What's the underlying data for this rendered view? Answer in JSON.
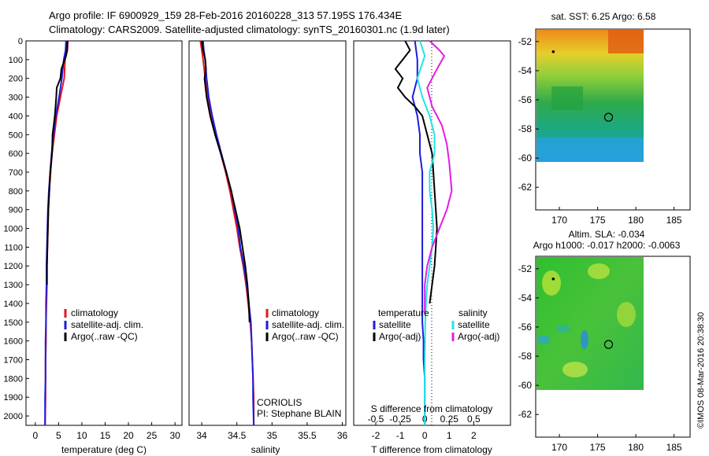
{
  "header": {
    "title_line1": "Argo profile: IF 6900929_159 28-Feb-2016 20160228_313 57.195S 176.434E",
    "title_line2": "Climatology: CARS2009. Satellite-adjusted climatology: synTS_20160301.nc (1.9d later)"
  },
  "stamp": "©IMOS 08-Mar-2016 20:38:30",
  "colors": {
    "climatology": "#e8141c",
    "satellite": "#1d1ddb",
    "argo": "#000000",
    "sat_salinity": "#22e5e5",
    "argo_salinity": "#e21ee2"
  },
  "chart_data": [
    {
      "id": "temperature",
      "type": "line",
      "xlabel": "temperature (deg C)",
      "xticks": [
        0,
        5,
        10,
        15,
        20,
        25,
        30
      ],
      "xlim": [
        -2,
        31.5
      ],
      "ylim": [
        0,
        2050
      ],
      "yticks": [
        0,
        100,
        200,
        300,
        400,
        500,
        600,
        700,
        800,
        900,
        1000,
        1100,
        1200,
        1300,
        1400,
        1500,
        1600,
        1700,
        1800,
        1900,
        2000
      ],
      "legend": [
        "climatology",
        "satellite-adj. clim.",
        "Argo(..raw -QC)"
      ],
      "series": [
        {
          "name": "climatology",
          "color": "climatology",
          "x": [
            7.0,
            6.9,
            6.4,
            6.2,
            5.4,
            4.6,
            4.1,
            3.6,
            3.3,
            3.0,
            2.8,
            2.7,
            2.6,
            2.5,
            2.5,
            2.4,
            2.3,
            2.3,
            2.2,
            2.2,
            2.2,
            2.1
          ],
          "y": [
            0,
            50,
            100,
            200,
            300,
            400,
            500,
            600,
            700,
            800,
            900,
            1000,
            1100,
            1200,
            1300,
            1400,
            1500,
            1600,
            1700,
            1800,
            1900,
            2050
          ]
        },
        {
          "name": "satellite-adj. clim.",
          "color": "satellite",
          "x": [
            6.6,
            6.5,
            6.1,
            5.7,
            5.1,
            4.4,
            3.9,
            3.5,
            3.2,
            2.9,
            2.7,
            2.6,
            2.5,
            2.4,
            2.4,
            2.3,
            2.3,
            2.2,
            2.2,
            2.2,
            2.1,
            2.1
          ],
          "y": [
            0,
            50,
            100,
            200,
            300,
            400,
            500,
            600,
            700,
            800,
            900,
            1000,
            1100,
            1200,
            1300,
            1400,
            1500,
            1600,
            1700,
            1800,
            1900,
            2050
          ]
        },
        {
          "name": "Argo(..raw -QC)",
          "color": "argo",
          "x": [
            6.9,
            6.8,
            6.6,
            6.3,
            5.6,
            5.4,
            4.6,
            4.5,
            4.2,
            3.7,
            3.6,
            3.2,
            3.0,
            2.8,
            2.7,
            2.6,
            2.5,
            2.5
          ],
          "y": [
            0,
            50,
            80,
            100,
            150,
            200,
            250,
            300,
            400,
            500,
            600,
            700,
            800,
            900,
            1000,
            1100,
            1200,
            1300
          ]
        }
      ]
    },
    {
      "id": "salinity",
      "type": "line",
      "xlabel": "salinity",
      "xticks": [
        34,
        34.5,
        35,
        35.5,
        36
      ],
      "xlim": [
        33.82,
        36.05
      ],
      "ylim": [
        0,
        2050
      ],
      "legend": [
        "climatology",
        "satellite-adj. clim.",
        "Argo(..raw -QC)"
      ],
      "annotation": [
        "CORIOLIS",
        "PI: Stephane BLAIN"
      ],
      "series": [
        {
          "name": "climatology",
          "color": "climatology",
          "x": [
            33.98,
            34.0,
            34.02,
            34.05,
            34.09,
            34.14,
            34.2,
            34.27,
            34.34,
            34.4,
            34.45,
            34.5,
            34.54,
            34.59,
            34.63,
            34.66,
            34.69,
            34.71,
            34.72,
            34.73,
            34.74,
            34.74
          ],
          "y": [
            0,
            50,
            100,
            200,
            300,
            400,
            500,
            600,
            700,
            800,
            900,
            1000,
            1100,
            1200,
            1300,
            1400,
            1500,
            1600,
            1700,
            1800,
            1900,
            2050
          ]
        },
        {
          "name": "satellite-adj. clim.",
          "color": "satellite",
          "x": [
            34.02,
            34.03,
            34.05,
            34.07,
            34.1,
            34.15,
            34.21,
            34.28,
            34.35,
            34.42,
            34.47,
            34.52,
            34.55,
            34.6,
            34.64,
            34.67,
            34.7,
            34.71,
            34.72,
            34.73,
            34.73,
            34.74
          ],
          "y": [
            0,
            50,
            100,
            200,
            300,
            400,
            500,
            600,
            700,
            800,
            900,
            1000,
            1100,
            1200,
            1300,
            1400,
            1500,
            1600,
            1700,
            1800,
            1900,
            2050
          ]
        },
        {
          "name": "Argo(..raw -QC)",
          "color": "argo",
          "x": [
            34.0,
            34.02,
            34.05,
            34.06,
            34.04,
            34.07,
            34.12,
            34.19,
            34.27,
            34.35,
            34.42,
            34.48,
            34.54,
            34.58,
            34.62,
            34.65,
            34.67,
            34.68
          ],
          "y": [
            0,
            50,
            100,
            150,
            200,
            300,
            400,
            500,
            600,
            700,
            800,
            900,
            1000,
            1100,
            1200,
            1300,
            1400,
            1500
          ]
        }
      ]
    },
    {
      "id": "difference",
      "type": "line",
      "xlabel": "T difference from climatology",
      "xlabel_top": "S difference from climatology",
      "xticks": [
        -2,
        -1,
        0,
        1,
        2
      ],
      "xticks_top": [
        "-0.5",
        "-0.25",
        "0",
        "0.25",
        "0.5"
      ],
      "xlim": [
        -2.9,
        3.5
      ],
      "ylim": [
        0,
        2050
      ],
      "legend_headers": [
        "temperature",
        "salinity"
      ],
      "legend_temperature": [
        "satellite",
        "Argo(-adj)"
      ],
      "legend_salinity": [
        "satellite",
        "Argo(-adj)"
      ],
      "series": [
        {
          "name": "satellite",
          "color": "satellite",
          "x": [
            -0.4,
            -0.3,
            -0.3,
            -0.5,
            -0.3,
            -0.2,
            -0.2,
            -0.1,
            -0.1,
            -0.1,
            -0.1,
            -0.1,
            -0.1,
            -0.1,
            -0.1,
            -0.1,
            -0.05,
            -0.05,
            0,
            0,
            0
          ],
          "y": [
            0,
            100,
            200,
            300,
            400,
            500,
            600,
            700,
            800,
            900,
            1000,
            1100,
            1200,
            1300,
            1400,
            1500,
            1600,
            1700,
            1800,
            1900,
            2050
          ]
        },
        {
          "name": "Argo(-adj)",
          "color": "argo",
          "x": [
            -0.8,
            -0.6,
            -1.2,
            -0.9,
            -1.1,
            -0.8,
            -0.4,
            -0.1,
            0.1,
            0.3,
            0.35,
            0.4,
            0.45,
            0.5,
            0.45,
            0.4,
            0.3,
            0.2
          ],
          "y": [
            0,
            50,
            150,
            200,
            250,
            300,
            350,
            400,
            500,
            600,
            700,
            800,
            900,
            1000,
            1100,
            1200,
            1300,
            1400
          ]
        },
        {
          "name": "satellite",
          "color": "sat_salinity",
          "x": [
            -0.2,
            0,
            -0.3,
            -0.1,
            0.2,
            0.4,
            0.4,
            0.2,
            0.2,
            0.3,
            0.35,
            0.3,
            0.2,
            0.1,
            0.05,
            0.02,
            0,
            0
          ],
          "y": [
            0,
            80,
            200,
            300,
            400,
            500,
            600,
            700,
            800,
            900,
            1000,
            1100,
            1200,
            1300,
            1400,
            1500,
            1700,
            2050
          ]
        },
        {
          "name": "Argo(-adj)",
          "color": "argo_salinity",
          "x": [
            0.2,
            0.6,
            0.8,
            0.5,
            0.1,
            0.3,
            0.7,
            0.9,
            1.0,
            1.1,
            0.9,
            0.6,
            0.3,
            0.1,
            0.0,
            0.0
          ],
          "y": [
            0,
            50,
            80,
            150,
            250,
            350,
            450,
            550,
            650,
            800,
            900,
            1000,
            1100,
            1200,
            1300,
            1450
          ]
        }
      ]
    }
  ],
  "maps": [
    {
      "id": "sst-map",
      "title": "sat. SST: 6.25 Argo: 6.58",
      "title2": "",
      "xticks": [
        "170",
        "175",
        "180",
        "185"
      ],
      "yticks": [
        "-52",
        "-54",
        "-56",
        "-58",
        "-60",
        "-62"
      ],
      "xlim": [
        167,
        187
      ],
      "ylim": [
        -63.5,
        -51.2
      ],
      "data_extent": {
        "lon": [
          167,
          180
        ],
        "lat": [
          -60,
          -51.2
        ]
      },
      "argo_position": {
        "lon": 176.434,
        "lat": -57.195
      },
      "reference_dot": {
        "lon": 169.2,
        "lat": -52.7
      }
    },
    {
      "id": "sla-map",
      "title": "Altim. SLA: -0.034",
      "title2": "Argo h1000: -0.017 h2000: -0.0063",
      "xticks": [
        "170",
        "175",
        "180",
        "185"
      ],
      "yticks": [
        "-52",
        "-54",
        "-56",
        "-58",
        "-60",
        "-62"
      ],
      "xlim": [
        167,
        187
      ],
      "ylim": [
        -63.5,
        -51.2
      ],
      "data_extent": {
        "lon": [
          167,
          180
        ],
        "lat": [
          -60,
          -51.2
        ]
      },
      "argo_position": {
        "lon": 176.434,
        "lat": -57.195
      },
      "reference_dot": {
        "lon": 169.2,
        "lat": -52.7
      }
    }
  ]
}
